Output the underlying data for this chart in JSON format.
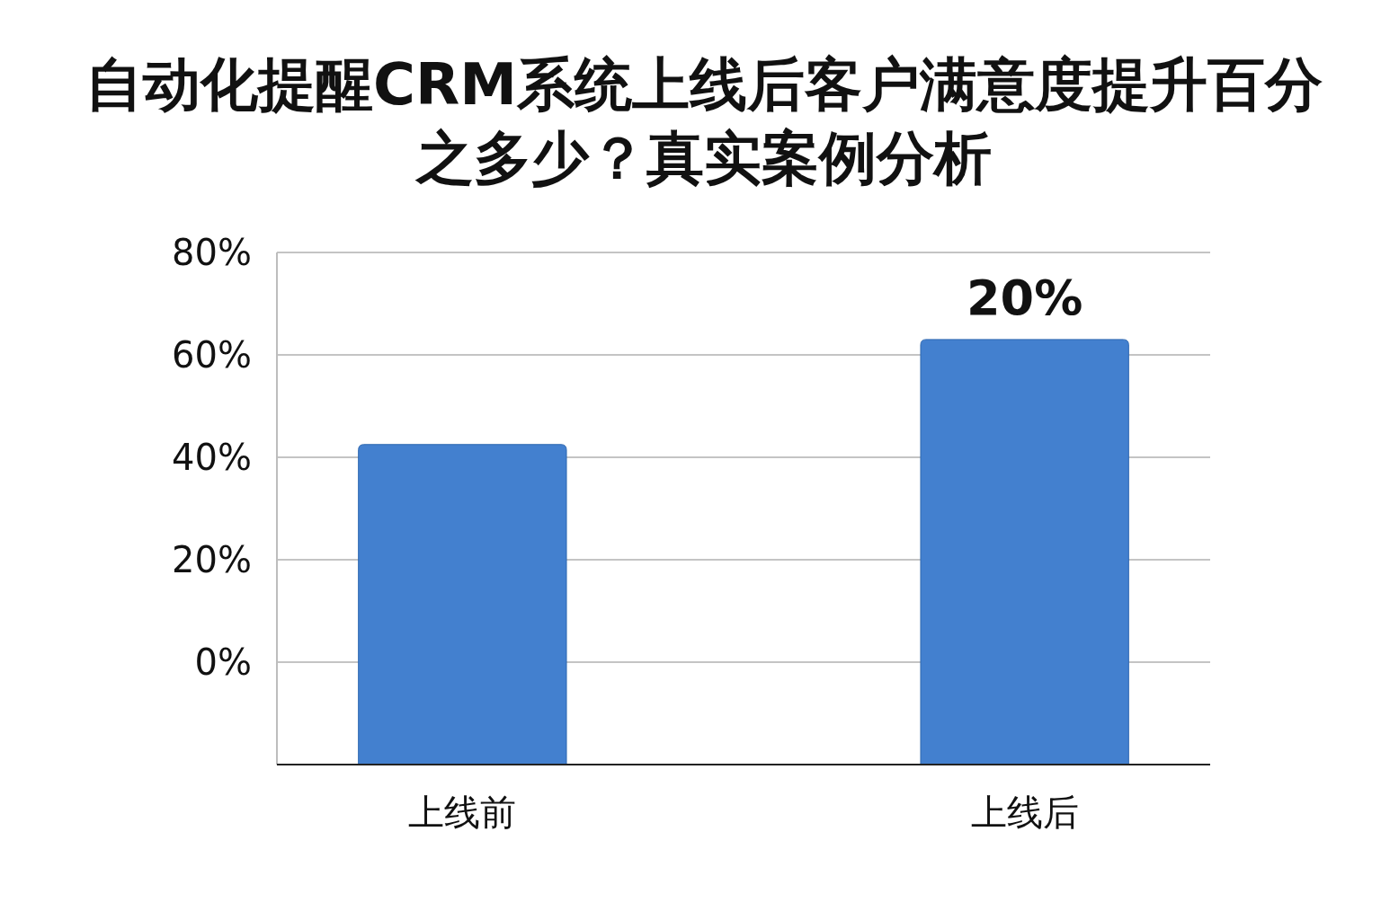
{
  "chart_data": {
    "type": "bar",
    "title": "自动化提醒CRM系统上线后客户满意度提升百分之多少？真实案例分析",
    "categories": [
      "上线前",
      "上线后"
    ],
    "values": [
      62.5,
      83
    ],
    "base": [
      -20,
      -20
    ],
    "color": "#4380cf",
    "ylim": [
      -20,
      80
    ],
    "yticks": [
      {
        "value": 0,
        "label": "0%"
      },
      {
        "value": 20,
        "label": "20%"
      },
      {
        "value": 40,
        "label": "40%"
      },
      {
        "value": 60,
        "label": "60%"
      },
      {
        "value": 80,
        "label": "80%"
      }
    ],
    "grid": "y",
    "annotations": [
      {
        "text": "20%",
        "x": "上线后",
        "y": 63
      }
    ]
  }
}
